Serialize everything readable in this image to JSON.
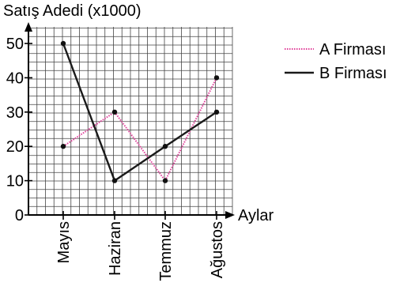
{
  "chart_data": {
    "type": "line",
    "ylabel": "Satış Adedi (x1000)",
    "xlabel": "Aylar",
    "categories": [
      "Mayıs",
      "Haziran",
      "Temmuz",
      "Ağustos"
    ],
    "ylim": [
      0,
      50
    ],
    "yticks": [
      0,
      10,
      20,
      30,
      40,
      50
    ],
    "grid": true,
    "legend_position": "top-right",
    "series": [
      {
        "name": "A Firması",
        "values": [
          20,
          30,
          10,
          40
        ],
        "color": "#e0409a",
        "style": "dotted"
      },
      {
        "name": "B Firması",
        "values": [
          50,
          10,
          20,
          30
        ],
        "color": "#1a1a1a",
        "style": "solid"
      }
    ]
  }
}
